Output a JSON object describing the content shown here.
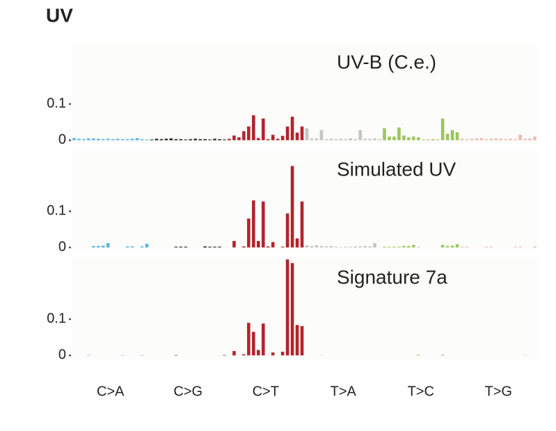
{
  "title": "UV",
  "classes": [
    {
      "name": "C>A",
      "color": "#5ab4e6"
    },
    {
      "name": "C>G",
      "color": "#1a1a1a"
    },
    {
      "name": "C>T",
      "color": "#b2242d"
    },
    {
      "name": "T>A",
      "color": "#c4c4c4"
    },
    {
      "name": "T>C",
      "color": "#9dc460"
    },
    {
      "name": "T>G",
      "color": "#e8bcb2"
    }
  ],
  "chart_data": [
    {
      "type": "bar",
      "title": "UV-B (C.e.)",
      "ylim": [
        -0.01,
        0.27
      ],
      "yticks": [
        0,
        0.1
      ],
      "values": [
        0.006,
        0.004,
        0.003,
        0.005,
        0.005,
        0.004,
        0.003,
        0.004,
        0.003,
        0.004,
        0.003,
        0.003,
        0.004,
        0.006,
        0.003,
        0.002,
        0.002,
        0.004,
        0.003,
        0.004,
        0.005,
        0.003,
        0.003,
        0.002,
        0.003,
        0.004,
        0.003,
        0.003,
        0.002,
        0.004,
        0.003,
        0.002,
        0.004,
        0.013,
        0.008,
        0.025,
        0.038,
        0.069,
        0.006,
        0.06,
        0.003,
        0.015,
        0.004,
        0.012,
        0.038,
        0.065,
        0.021,
        0.038,
        0.033,
        0.005,
        0.005,
        0.028,
        0.003,
        0.004,
        0.003,
        0.004,
        0.003,
        0.005,
        0.003,
        0.028,
        0.004,
        0.004,
        0.005,
        0.003,
        0.033,
        0.01,
        0.01,
        0.035,
        0.013,
        0.008,
        0.01,
        0.008,
        0.002,
        0.002,
        0.003,
        0.002,
        0.06,
        0.018,
        0.028,
        0.022,
        0.004,
        0.003,
        0.004,
        0.005,
        0.006,
        0.003,
        0.004,
        0.005,
        0.004,
        0.003,
        0.004,
        0.003,
        0.015,
        0.004,
        0.005,
        0.01
      ]
    },
    {
      "type": "bar",
      "title": "Simulated UV",
      "ylim": [
        -0.01,
        0.27
      ],
      "yticks": [
        0,
        0.1
      ],
      "values": [
        0,
        0,
        0,
        0,
        0.004,
        0.004,
        0.005,
        0.012,
        0,
        0,
        0,
        0.003,
        0.003,
        0,
        0.003,
        0.01,
        0,
        0,
        0,
        0,
        0,
        0.002,
        0.002,
        0.002,
        0,
        0,
        0,
        0.003,
        0.002,
        0.002,
        0.002,
        0,
        0,
        0.018,
        0,
        0.003,
        0.08,
        0.13,
        0.018,
        0.127,
        0.003,
        0.015,
        0,
        0.002,
        0.094,
        0.225,
        0.025,
        0.127,
        0.006,
        0.004,
        0.006,
        0.004,
        0.003,
        0.004,
        0.002,
        0.001,
        0.002,
        0.002,
        0.003,
        0.003,
        0.004,
        0.003,
        0.012,
        0,
        0.002,
        0.002,
        0.002,
        0.002,
        0.004,
        0.004,
        0.007,
        0.001,
        0,
        0,
        0,
        0,
        0.007,
        0.004,
        0.005,
        0.009,
        0.002,
        0.002,
        0,
        0,
        0,
        0.002,
        0.002,
        0,
        0,
        0,
        0,
        0.002,
        0.002,
        0,
        0,
        0.003
      ]
    },
    {
      "type": "bar",
      "title": "Signature 7a",
      "ylim": [
        -0.01,
        0.27
      ],
      "yticks": [
        0,
        0.1
      ],
      "values": [
        0,
        0,
        0,
        0.001,
        0,
        0,
        0,
        0,
        0,
        0,
        0.001,
        0,
        0,
        0,
        0.001,
        0,
        0,
        0,
        0,
        0,
        0,
        0.001,
        0,
        0,
        0,
        0,
        0,
        0,
        0,
        0,
        0,
        0.001,
        0,
        0.012,
        0,
        0.003,
        0.09,
        0.065,
        0.015,
        0.088,
        0,
        0.008,
        0,
        0.01,
        0.265,
        0.255,
        0.084,
        0.081,
        0,
        0,
        0,
        0.001,
        0,
        0,
        0,
        0,
        0,
        0,
        0,
        0,
        0,
        0,
        0,
        0,
        0,
        0,
        0,
        0,
        0,
        0,
        0,
        0.002,
        0,
        0,
        0,
        0,
        0.002,
        0,
        0,
        0,
        0,
        0,
        0,
        0,
        0,
        0,
        0,
        0,
        0,
        0,
        0,
        0,
        0,
        0.001,
        0,
        0
      ]
    }
  ]
}
